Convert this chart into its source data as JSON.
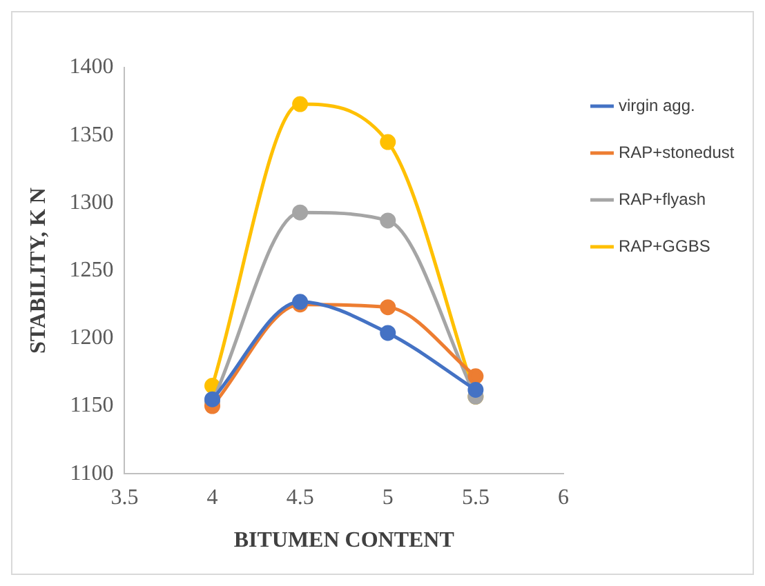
{
  "chart_data": {
    "type": "line",
    "xlabel": "BITUMEN CONTENT",
    "ylabel": "STABILITY, K N",
    "x": [
      4,
      4.5,
      5,
      5.5
    ],
    "xlim": [
      3.5,
      6
    ],
    "xticks": [
      3.5,
      4,
      4.5,
      5,
      5.5,
      6
    ],
    "ylim": [
      1100,
      1400
    ],
    "yticks": [
      1100,
      1150,
      1200,
      1250,
      1300,
      1350,
      1400
    ],
    "grid": false,
    "legend": "right",
    "marker": "circle",
    "series": [
      {
        "name": "virgin agg.",
        "color": "#4472c4",
        "values": [
          1155,
          1227,
          1204,
          1162
        ]
      },
      {
        "name": "RAP+stonedust",
        "color": "#ed7d31",
        "values": [
          1150,
          1225,
          1223,
          1172
        ]
      },
      {
        "name": "RAP+flyash",
        "color": "#a5a5a5",
        "values": [
          1153,
          1293,
          1287,
          1157
        ]
      },
      {
        "name": "RAP+GGBS",
        "color": "#ffc000",
        "values": [
          1165,
          1373,
          1345,
          1157
        ]
      }
    ]
  }
}
